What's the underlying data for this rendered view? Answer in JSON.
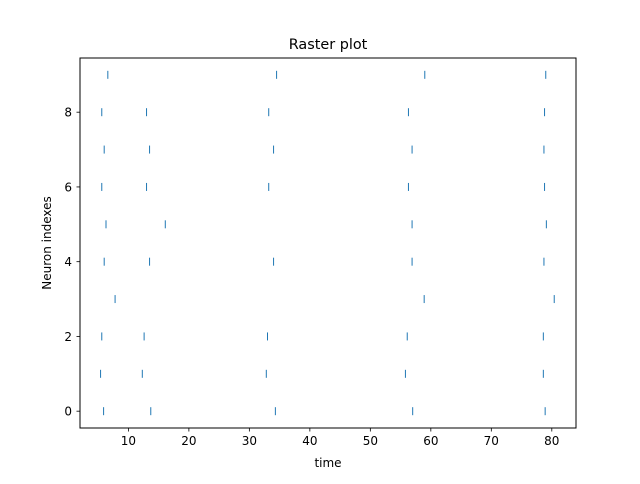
{
  "chart_data": {
    "type": "scatter",
    "marker": "vertical-tick",
    "title": "Raster plot",
    "xlabel": "time",
    "ylabel": "Neuron indexes",
    "xlim": [
      2,
      84
    ],
    "ylim": [
      -0.45,
      9.45
    ],
    "xticks": [
      10,
      20,
      30,
      40,
      50,
      60,
      70,
      80
    ],
    "yticks": [
      0,
      2,
      4,
      6,
      8
    ],
    "grid": false,
    "color": "#1f77b4",
    "series": [
      {
        "neuron": 0,
        "x": [
          5.9,
          13.7,
          34.3,
          57.0,
          78.9
        ]
      },
      {
        "neuron": 1,
        "x": [
          5.4,
          12.3,
          32.8,
          55.8,
          78.6
        ]
      },
      {
        "neuron": 2,
        "x": [
          5.6,
          12.6,
          33.0,
          56.1,
          78.6
        ]
      },
      {
        "neuron": 3,
        "x": [
          7.8,
          58.9,
          80.4
        ]
      },
      {
        "neuron": 4,
        "x": [
          6.0,
          13.5,
          34.0,
          56.9,
          78.7
        ]
      },
      {
        "neuron": 5,
        "x": [
          6.3,
          16.1,
          56.9,
          79.1
        ]
      },
      {
        "neuron": 6,
        "x": [
          5.6,
          13.0,
          33.2,
          56.3,
          78.8
        ]
      },
      {
        "neuron": 7,
        "x": [
          6.0,
          13.5,
          34.0,
          56.9,
          78.7
        ]
      },
      {
        "neuron": 8,
        "x": [
          5.6,
          13.0,
          33.2,
          56.3,
          78.8
        ]
      },
      {
        "neuron": 9,
        "x": [
          6.6,
          34.5,
          59.0,
          79.0
        ]
      }
    ]
  }
}
